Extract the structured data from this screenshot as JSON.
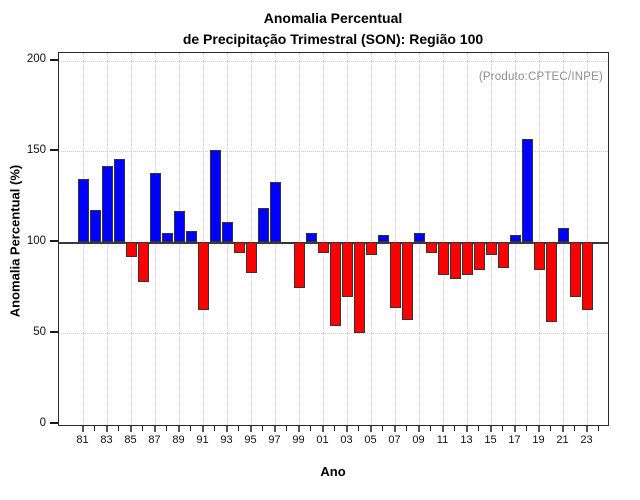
{
  "title": {
    "line1": "Anomalia Percentual",
    "line2": "de Precipitação Trimestral (SON): Região 100"
  },
  "annotation": "(Produto:CPTEC/INPE)",
  "chart_data": {
    "type": "bar",
    "title": "Anomalia Percentual de Precipitação Trimestral (SON): Região 100",
    "xlabel": "Ano",
    "ylabel": "Anomalia Percentual (%)",
    "ylim": [
      0,
      200
    ],
    "yticks": [
      0,
      50,
      100,
      150,
      200
    ],
    "baseline": 100,
    "grid": "dotted",
    "legend": "none",
    "x_tick_labels": [
      "81",
      "83",
      "85",
      "87",
      "89",
      "91",
      "93",
      "95",
      "97",
      "99",
      "01",
      "03",
      "05",
      "07",
      "09",
      "11",
      "13",
      "15",
      "17",
      "19",
      "21",
      "23"
    ],
    "years": [
      1981,
      1982,
      1983,
      1984,
      1985,
      1986,
      1987,
      1988,
      1989,
      1990,
      1991,
      1992,
      1993,
      1994,
      1995,
      1996,
      1997,
      1998,
      1999,
      2000,
      2001,
      2002,
      2003,
      2004,
      2005,
      2006,
      2007,
      2008,
      2009,
      2010,
      2011,
      2012,
      2013,
      2014,
      2015,
      2016,
      2017,
      2018,
      2019,
      2020,
      2021,
      2022,
      2023
    ],
    "values": [
      135,
      118,
      142,
      146,
      92,
      78,
      138,
      105,
      117,
      106,
      63,
      151,
      111,
      94,
      83,
      119,
      133,
      99,
      75,
      105,
      94,
      54,
      70,
      50,
      93,
      104,
      64,
      57,
      105,
      94,
      82,
      80,
      82,
      85,
      93,
      86,
      104,
      157,
      85,
      56,
      108,
      70,
      63
    ],
    "colors": {
      "above_baseline": "#0000ff",
      "below_baseline": "#ff0000",
      "bar_border": "#333333",
      "annotation_text": "#8c8c8c",
      "gridline": "#cdcdcd"
    }
  }
}
